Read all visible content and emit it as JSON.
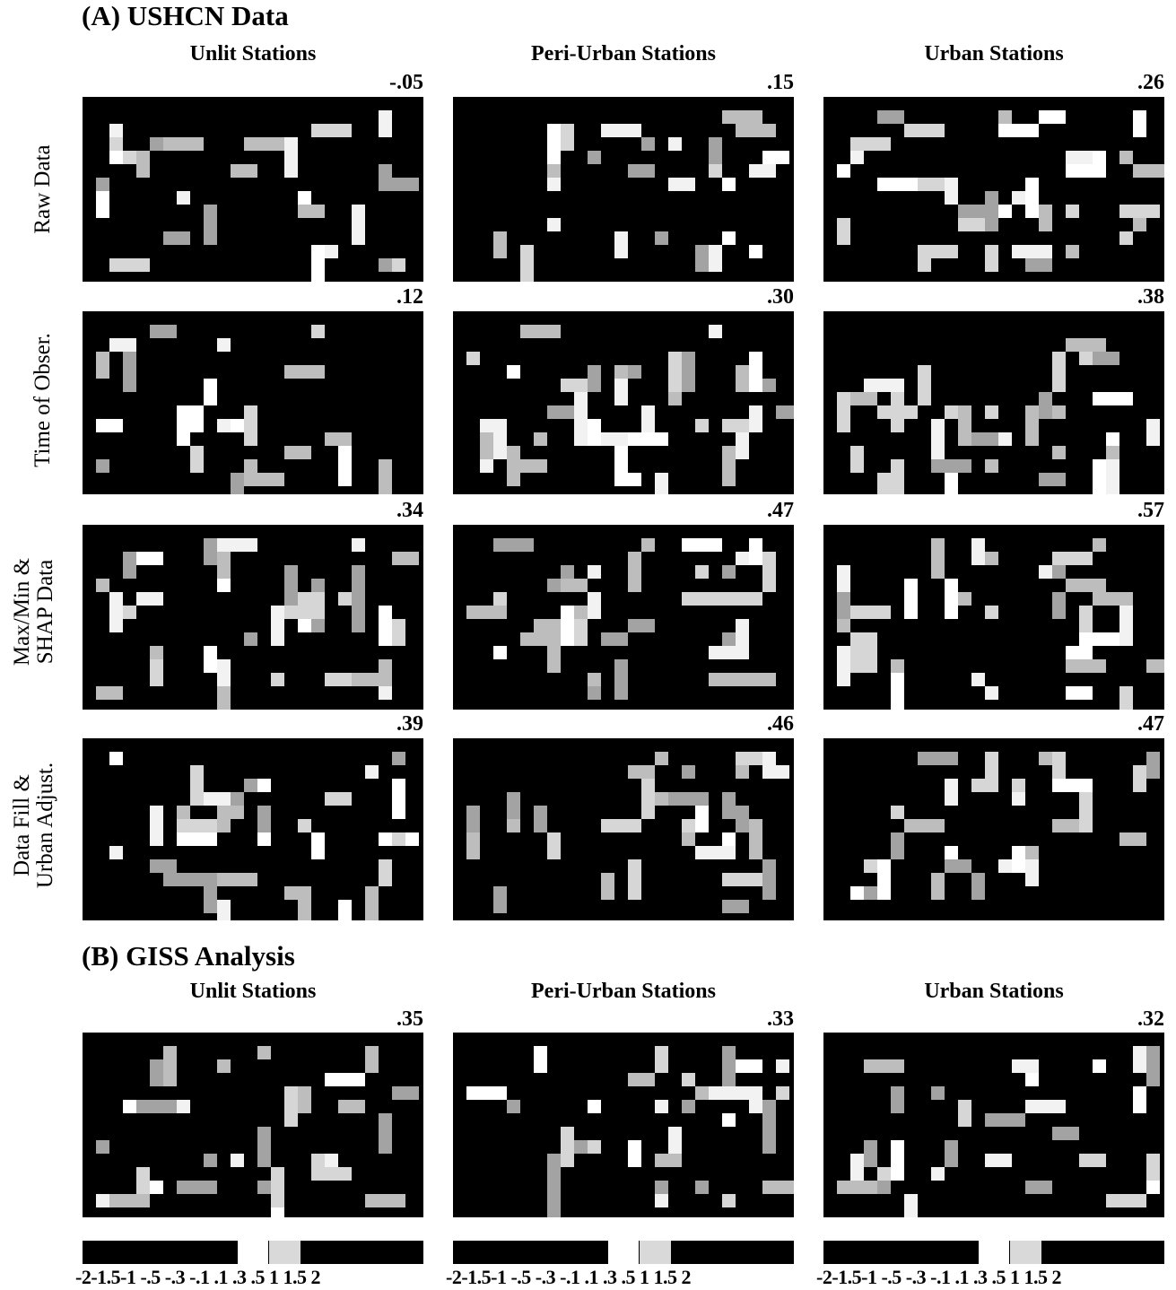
{
  "figure": {
    "section_a_title": "(A)  USHCN Data",
    "section_b_title": "(B)  GISS Analysis",
    "columns": [
      "Unlit Stations",
      "Peri-Urban Stations",
      "Urban Stations"
    ],
    "row_labels": [
      {
        "line1": "Raw Data",
        "line2": ""
      },
      {
        "line1": "Time of Obser.",
        "line2": ""
      },
      {
        "line1": "Max/Min &",
        "line2": "SHAP Data"
      },
      {
        "line1": "Data Fill &",
        "line2": "Urban Adjust."
      }
    ]
  },
  "chart_data": {
    "type": "heatmap",
    "map_region": "contiguous United States",
    "panel_values": {
      "ushcn": [
        [
          -0.05,
          0.15,
          0.26
        ],
        [
          0.12,
          0.3,
          0.38
        ],
        [
          0.34,
          0.47,
          0.57
        ],
        [
          0.39,
          0.46,
          0.47
        ]
      ],
      "giss": [
        0.35,
        0.33,
        0.32
      ]
    },
    "value_labels": {
      "ushcn": [
        [
          "-.05",
          ".15",
          ".26"
        ],
        [
          ".12",
          ".30",
          ".38"
        ],
        [
          ".34",
          ".47",
          ".57"
        ],
        [
          ".39",
          ".46",
          ".47"
        ]
      ],
      "giss": [
        ".35",
        ".33",
        ".32"
      ]
    },
    "colorbar": {
      "boundaries": [
        -2,
        -1.5,
        -1,
        -0.5,
        -0.3,
        -0.1,
        0.1,
        0.3,
        0.5,
        1,
        1.5,
        2
      ],
      "tick_labels": "-2-1.5-1 -.5 -.3 -.1  .1  .3  .5  1  1.5  2",
      "colors": [
        "#000000",
        "#000000",
        "#000000",
        "#000000",
        "#000000",
        "#ffffff",
        "#d9d9d9",
        "#000000",
        "#000000",
        "#000000",
        "#000000"
      ]
    }
  }
}
